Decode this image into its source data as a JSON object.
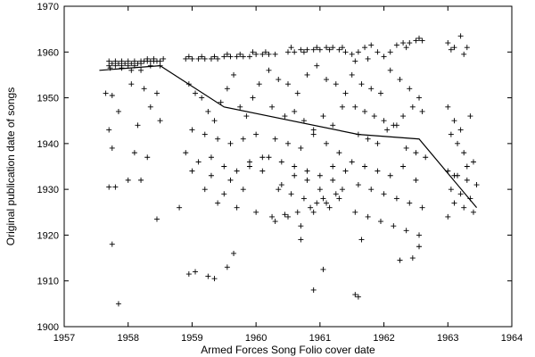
{
  "chart_data": {
    "type": "scatter",
    "title": "",
    "xlabel": "Armed Forces Song Folio cover date",
    "ylabel": "Original publication date of songs",
    "xlim": [
      1957,
      1964
    ],
    "ylim": [
      1900,
      1970
    ],
    "x_ticks": [
      "1957",
      "1958",
      "1959",
      "1960",
      "1961",
      "1962",
      "1963",
      "1964"
    ],
    "y_ticks": [
      "1900",
      "1910",
      "1920",
      "1930",
      "1940",
      "1950",
      "1960",
      "1970"
    ],
    "grid": false,
    "legend": "none",
    "marker": "plus",
    "trend_line": {
      "x": [
        1957.55,
        1958.5,
        1959.5,
        1961.6,
        1962.55,
        1963.45
      ],
      "y": [
        1956,
        1957,
        1948,
        1942,
        1941,
        1926
      ]
    },
    "points": {
      "x": [
        1957.7,
        1957.8,
        1957.9,
        1958.0,
        1958.1,
        1958.2,
        1958.3,
        1958.4,
        1958.5,
        1957.75,
        1957.85,
        1957.95,
        1958.05,
        1958.15,
        1958.25,
        1958.35,
        1958.45,
        1958.55,
        1957.7,
        1957.8,
        1957.9,
        1958.0,
        1958.1,
        1958.2,
        1958.3,
        1958.4,
        1957.72,
        1957.9,
        1958.05,
        1958.2,
        1958.35,
        1958.5,
        1958.9,
        1959.0,
        1959.1,
        1959.2,
        1959.3,
        1959.4,
        1959.5,
        1959.6,
        1959.7,
        1959.8,
        1959.9,
        1960.0,
        1960.1,
        1960.2,
        1960.3,
        1958.95,
        1959.15,
        1959.35,
        1959.55,
        1959.75,
        1959.95,
        1960.15,
        1960.5,
        1960.6,
        1960.7,
        1960.8,
        1960.9,
        1961.0,
        1961.1,
        1961.2,
        1961.3,
        1961.4,
        1960.55,
        1960.75,
        1960.95,
        1961.15,
        1961.35,
        1961.5,
        1961.6,
        1961.7,
        1961.8,
        1961.9,
        1962.0,
        1962.1,
        1962.2,
        1962.3,
        1962.4,
        1962.5,
        1962.6,
        1961.55,
        1961.75,
        1962.35,
        1962.55,
        1963.0,
        1963.1,
        1963.2,
        1963.3,
        1963.05,
        1963.25,
        1957.65,
        1957.75,
        1958.05,
        1958.25,
        1958.45,
        1957.7,
        1957.85,
        1958.15,
        1958.35,
        1957.75,
        1958.1,
        1958.3,
        1957.7,
        1958.0,
        1958.2,
        1958.45,
        1957.8,
        1957.75,
        1957.85,
        1958.5,
        1958.95,
        1959.05,
        1959.15,
        1959.25,
        1959.35,
        1959.45,
        1959.55,
        1959.65,
        1959.75,
        1959.85,
        1959.95,
        1960.05,
        1959.0,
        1959.2,
        1959.4,
        1959.6,
        1959.8,
        1960.0,
        1958.9,
        1959.1,
        1959.3,
        1959.5,
        1959.7,
        1959.9,
        1960.1,
        1959.0,
        1959.3,
        1959.6,
        1959.9,
        1959.2,
        1959.5,
        1959.8,
        1960.1,
        1958.8,
        1959.4,
        1959.7,
        1960.0,
        1959.05,
        1959.35,
        1959.65,
        1958.95,
        1959.25,
        1959.55,
        1960.2,
        1960.35,
        1960.5,
        1960.65,
        1960.8,
        1960.95,
        1961.1,
        1961.25,
        1961.4,
        1960.25,
        1960.45,
        1960.6,
        1960.75,
        1960.9,
        1961.05,
        1961.2,
        1961.35,
        1960.3,
        1960.5,
        1960.7,
        1960.9,
        1961.1,
        1961.3,
        1960.2,
        1960.4,
        1960.6,
        1960.8,
        1961.0,
        1961.2,
        1961.4,
        1960.35,
        1960.55,
        1960.75,
        1960.95,
        1961.15,
        1961.35,
        1960.25,
        1960.45,
        1960.65,
        1960.85,
        1961.05,
        1961.25,
        1960.3,
        1960.5,
        1960.7,
        1960.9,
        1961.1,
        1961.3,
        1960.4,
        1960.6,
        1960.8,
        1961.0,
        1961.2,
        1960.7,
        1960.9,
        1961.05,
        1961.55,
        1961.6,
        1961.5,
        1961.65,
        1961.8,
        1961.95,
        1962.1,
        1962.25,
        1962.4,
        1962.55,
        1961.55,
        1961.7,
        1961.85,
        1962.0,
        1962.15,
        1962.3,
        1962.45,
        1962.6,
        1961.6,
        1961.75,
        1961.9,
        1962.05,
        1962.2,
        1962.35,
        1962.5,
        1962.65,
        1961.5,
        1961.7,
        1961.9,
        1962.1,
        1962.3,
        1962.5,
        1961.6,
        1961.8,
        1962.0,
        1962.2,
        1962.4,
        1962.6,
        1961.55,
        1961.75,
        1961.95,
        1962.15,
        1962.35,
        1962.55,
        1961.65,
        1962.25,
        1962.45,
        1962.55,
        1963.0,
        1963.1,
        1963.2,
        1963.35,
        1963.05,
        1963.15,
        1963.25,
        1963.4,
        1963.0,
        1963.1,
        1963.3,
        1963.45,
        1963.05,
        1963.2,
        1963.35,
        1963.1,
        1963.25,
        1963.4,
        1963.0,
        1963.15,
        1963.3
      ],
      "y": [
        1957,
        1957,
        1957,
        1957,
        1957,
        1957.5,
        1958,
        1958,
        1958,
        1957.5,
        1957.5,
        1957.5,
        1957.5,
        1957.5,
        1958,
        1958,
        1958,
        1958.5,
        1958,
        1958,
        1958,
        1958,
        1958,
        1958,
        1958.5,
        1958.5,
        1956.5,
        1956.5,
        1956,
        1956,
        1957,
        1957,
        1958.5,
        1958.5,
        1958.5,
        1958.5,
        1958.5,
        1958.5,
        1959,
        1959,
        1959,
        1959,
        1959,
        1959.5,
        1959.5,
        1959.5,
        1959.5,
        1959,
        1959,
        1959,
        1959.5,
        1959.5,
        1960,
        1960,
        1960,
        1960,
        1960.5,
        1960.5,
        1960.5,
        1960.5,
        1961,
        1961,
        1960.5,
        1960,
        1961,
        1960,
        1961,
        1960.5,
        1961,
        1959.5,
        1960,
        1961,
        1961.5,
        1960,
        1959,
        1960,
        1961.5,
        1962,
        1962,
        1962.5,
        1962.5,
        1958,
        1958.5,
        1961,
        1963,
        1962,
        1961,
        1963.5,
        1961,
        1960.5,
        1959.5,
        1951,
        1950.5,
        1953,
        1952,
        1951,
        1943,
        1947,
        1944,
        1948,
        1939,
        1938,
        1937,
        1930.5,
        1932,
        1932,
        1923.5,
        1930.5,
        1918,
        1905,
        1945,
        1953,
        1951,
        1950,
        1947,
        1945,
        1949,
        1952,
        1955,
        1948,
        1946,
        1950,
        1953,
        1943,
        1942,
        1941,
        1940,
        1941,
        1942,
        1938,
        1936,
        1937,
        1935,
        1934,
        1936,
        1937,
        1934,
        1933,
        1932,
        1935,
        1930,
        1929,
        1930,
        1934,
        1926,
        1927,
        1926,
        1925,
        1912,
        1910.5,
        1916,
        1911.5,
        1911,
        1913,
        1956,
        1954,
        1953,
        1951,
        1955,
        1957,
        1954,
        1953,
        1951,
        1948,
        1946,
        1947,
        1945,
        1943,
        1946,
        1944,
        1948,
        1941,
        1940,
        1939,
        1942,
        1940,
        1938,
        1937,
        1936,
        1935,
        1934,
        1933,
        1932,
        1934,
        1930,
        1929,
        1928,
        1927,
        1926,
        1930,
        1924,
        1924.5,
        1925,
        1926,
        1928,
        1929,
        1923,
        1924,
        1922,
        1925,
        1927,
        1928,
        1931,
        1933,
        1932,
        1930,
        1935,
        1919,
        1908,
        1912.5,
        1907,
        1906.5,
        1955,
        1953,
        1952,
        1951,
        1956,
        1954,
        1952,
        1950,
        1948,
        1947,
        1946,
        1945,
        1944,
        1946,
        1948,
        1947,
        1942,
        1941,
        1940,
        1943,
        1944,
        1939,
        1938,
        1937,
        1936,
        1935,
        1934,
        1933,
        1935,
        1932,
        1931,
        1930,
        1929,
        1928,
        1927,
        1926,
        1925,
        1924,
        1923,
        1922,
        1921,
        1920,
        1919,
        1914.5,
        1915,
        1917.5,
        1948,
        1945,
        1943,
        1946,
        1942,
        1940,
        1938,
        1936,
        1934,
        1933,
        1932,
        1931,
        1930,
        1929,
        1928,
        1927,
        1926,
        1925,
        1924,
        1933,
        1935
      ]
    }
  }
}
